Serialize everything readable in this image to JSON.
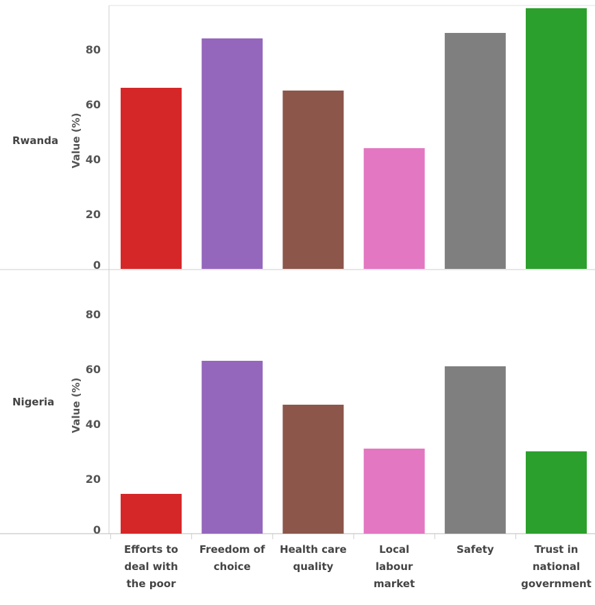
{
  "chart_data": {
    "type": "bar",
    "categories": [
      "Efforts to deal with the poor",
      "Freedom of choice",
      "Health care quality",
      "Local labour market",
      "Safety",
      "Trust in national government"
    ],
    "category_lines": [
      [
        "Efforts to",
        "deal with",
        "the poor"
      ],
      [
        "Freedom of",
        "choice"
      ],
      [
        "Health care",
        "quality"
      ],
      [
        "Local",
        "labour",
        "market"
      ],
      [
        "Safety"
      ],
      [
        "Trust in",
        "national",
        "government"
      ]
    ],
    "ylabel": "Value (%)",
    "ylim": [
      0,
      96
    ],
    "yticks": [
      0,
      20,
      40,
      60,
      80
    ],
    "panels": [
      {
        "name": "Rwanda",
        "values": [
          66,
          84,
          65,
          44,
          86,
          95
        ]
      },
      {
        "name": "Nigeria",
        "values": [
          14.5,
          63,
          47,
          31,
          61,
          30
        ]
      }
    ],
    "colors": [
      "#d62728",
      "#9467bd",
      "#8c564b",
      "#e377c2",
      "#7f7f7f",
      "#2ca02c"
    ],
    "grid": false,
    "legend": "none"
  }
}
